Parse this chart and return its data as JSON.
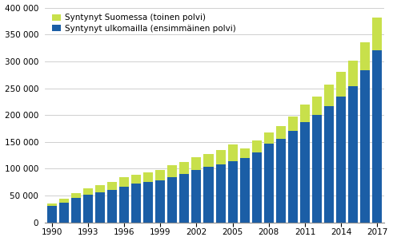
{
  "years": [
    1990,
    1991,
    1992,
    1993,
    1994,
    1995,
    1996,
    1997,
    1998,
    1999,
    2000,
    2001,
    2002,
    2003,
    2004,
    2005,
    2006,
    2007,
    2008,
    2009,
    2010,
    2011,
    2012,
    2013,
    2014,
    2015,
    2016,
    2017
  ],
  "born_abroad": [
    30500,
    37000,
    46000,
    52000,
    56000,
    61000,
    67000,
    72000,
    75000,
    79000,
    85000,
    91000,
    98000,
    103000,
    108000,
    114000,
    120000,
    130000,
    147000,
    155000,
    170000,
    187000,
    200000,
    217000,
    235000,
    254000,
    284000,
    320000
  ],
  "born_finland": [
    5000,
    7000,
    9000,
    11000,
    13000,
    15000,
    17000,
    17000,
    18000,
    19000,
    21000,
    22000,
    24000,
    25000,
    27000,
    31000,
    18000,
    22000,
    20000,
    25000,
    28000,
    32000,
    35000,
    40000,
    45000,
    48000,
    52000,
    62000
  ],
  "color_abroad": "#1b5ea6",
  "color_finland": "#c8e04b",
  "legend_abroad": "Syntynyt ulkomailla (ensimmäinen polvi)",
  "legend_finland": "Syntynyt Suomessa (toinen polvi)",
  "ylim": [
    0,
    400000
  ],
  "yticks": [
    0,
    50000,
    100000,
    150000,
    200000,
    250000,
    300000,
    350000,
    400000
  ],
  "xtick_years": [
    1990,
    1993,
    1996,
    1999,
    2002,
    2005,
    2008,
    2011,
    2014,
    2017
  ],
  "background_color": "#ffffff",
  "grid_color": "#c8c8c8"
}
